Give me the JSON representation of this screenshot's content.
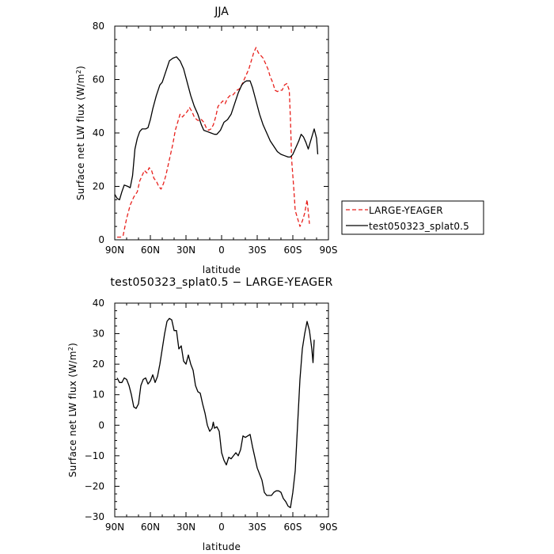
{
  "chart_data": [
    {
      "type": "line",
      "title": "JJA",
      "xlabel": "latitude",
      "ylabel": "Surface net LW flux (W/m²)",
      "ylabel_parts": [
        "Surface net LW flux (W/m",
        "2",
        ")"
      ],
      "xlim": [
        90,
        -90
      ],
      "ylim": [
        0,
        80
      ],
      "x_ticks": [
        90,
        60,
        30,
        0,
        -30,
        -60,
        -90
      ],
      "x_tick_labels": [
        "90N",
        "60N",
        "30N",
        "0",
        "30S",
        "60S",
        "90S"
      ],
      "y_ticks": [
        0,
        20,
        40,
        60,
        80
      ],
      "y_tick_labels": [
        "0",
        "20",
        "40",
        "60",
        "80"
      ],
      "legend": "right",
      "series": [
        {
          "name": "LARGE-YEAGER",
          "color": "#e8201c",
          "dash": true,
          "points": [
            [
              88,
              1
            ],
            [
              85,
              1
            ],
            [
              83,
              1.5
            ],
            [
              80,
              8
            ],
            [
              77,
              13
            ],
            [
              74,
              16
            ],
            [
              71,
              18
            ],
            [
              69,
              22
            ],
            [
              67,
              24
            ],
            [
              65,
              26
            ],
            [
              63,
              25
            ],
            [
              61,
              27
            ],
            [
              59,
              26
            ],
            [
              57,
              23
            ],
            [
              55,
              22
            ],
            [
              53,
              20
            ],
            [
              51,
              19
            ],
            [
              49,
              21
            ],
            [
              47,
              24
            ],
            [
              45,
              28
            ],
            [
              43,
              32
            ],
            [
              41,
              36
            ],
            [
              39,
              41
            ],
            [
              37,
              44
            ],
            [
              35,
              47
            ],
            [
              33,
              46
            ],
            [
              31,
              47
            ],
            [
              29,
              48
            ],
            [
              27,
              49.5
            ],
            [
              25,
              48
            ],
            [
              23,
              46
            ],
            [
              21,
              45
            ],
            [
              19,
              44.5
            ],
            [
              17,
              45
            ],
            [
              15,
              44
            ],
            [
              13,
              42
            ],
            [
              11,
              41
            ],
            [
              9,
              41.5
            ],
            [
              7,
              43
            ],
            [
              5,
              46
            ],
            [
              3,
              50
            ],
            [
              1,
              51
            ],
            [
              -1,
              52
            ],
            [
              -3,
              51
            ],
            [
              -5,
              53
            ],
            [
              -7,
              54
            ],
            [
              -9,
              54
            ],
            [
              -11,
              55
            ],
            [
              -13,
              56
            ],
            [
              -15,
              56.5
            ],
            [
              -17,
              58
            ],
            [
              -19,
              60
            ],
            [
              -21,
              62
            ],
            [
              -23,
              64
            ],
            [
              -25,
              67
            ],
            [
              -27,
              70
            ],
            [
              -29,
              72
            ],
            [
              -31,
              70
            ],
            [
              -33,
              69
            ],
            [
              -35,
              68
            ],
            [
              -37,
              66
            ],
            [
              -39,
              64
            ],
            [
              -41,
              61
            ],
            [
              -43,
              59
            ],
            [
              -45,
              56
            ],
            [
              -47,
              55.5
            ],
            [
              -49,
              56
            ],
            [
              -51,
              56
            ],
            [
              -53,
              58
            ],
            [
              -55,
              58.5
            ],
            [
              -57,
              56
            ],
            [
              -58,
              45
            ],
            [
              -59,
              30
            ],
            [
              -61,
              18
            ],
            [
              -62,
              11
            ],
            [
              -64,
              8
            ],
            [
              -66,
              5
            ],
            [
              -68,
              7
            ],
            [
              -70,
              10
            ],
            [
              -72,
              15
            ],
            [
              -74,
              6
            ]
          ]
        },
        {
          "name": "test050323_splat0.5",
          "color": "#000000",
          "dash": false,
          "points": [
            [
              90,
              17
            ],
            [
              88,
              15.5
            ],
            [
              86,
              15
            ],
            [
              84,
              18
            ],
            [
              82,
              20.5
            ],
            [
              79,
              20
            ],
            [
              77,
              19.5
            ],
            [
              75,
              24
            ],
            [
              73,
              34
            ],
            [
              71,
              38
            ],
            [
              69,
              40.5
            ],
            [
              67,
              41.5
            ],
            [
              64,
              41.5
            ],
            [
              62,
              42
            ],
            [
              60,
              45
            ],
            [
              58,
              49
            ],
            [
              55,
              54
            ],
            [
              52,
              58
            ],
            [
              50,
              59
            ],
            [
              47,
              63
            ],
            [
              44,
              67
            ],
            [
              41,
              68
            ],
            [
              38,
              68.5
            ],
            [
              35,
              67
            ],
            [
              32,
              64
            ],
            [
              29,
              59
            ],
            [
              26,
              54
            ],
            [
              23,
              50
            ],
            [
              20,
              47
            ],
            [
              17,
              43
            ],
            [
              15,
              41
            ],
            [
              12,
              40.5
            ],
            [
              9,
              40
            ],
            [
              6,
              39.5
            ],
            [
              4,
              39.5
            ],
            [
              1,
              41
            ],
            [
              -2,
              44
            ],
            [
              -5,
              45
            ],
            [
              -8,
              47
            ],
            [
              -11,
              51
            ],
            [
              -14,
              55
            ],
            [
              -17,
              58
            ],
            [
              -19,
              59
            ],
            [
              -21,
              59.5
            ],
            [
              -24,
              59.5
            ],
            [
              -26,
              57
            ],
            [
              -29,
              52
            ],
            [
              -32,
              47
            ],
            [
              -35,
              43
            ],
            [
              -38,
              40
            ],
            [
              -41,
              37
            ],
            [
              -44,
              35
            ],
            [
              -47,
              33
            ],
            [
              -50,
              32
            ],
            [
              -53,
              31.5
            ],
            [
              -56,
              31
            ],
            [
              -58,
              31
            ],
            [
              -60,
              32
            ],
            [
              -63,
              35
            ],
            [
              -65,
              37
            ],
            [
              -67,
              39.5
            ],
            [
              -69,
              38.5
            ],
            [
              -71,
              36.5
            ],
            [
              -73,
              34
            ],
            [
              -75,
              37
            ],
            [
              -77,
              40
            ],
            [
              -78,
              41.5
            ],
            [
              -80,
              38
            ],
            [
              -81,
              32
            ]
          ]
        }
      ]
    },
    {
      "type": "line",
      "title": "test050323_splat0.5 − LARGE-YEAGER",
      "xlabel": "latitude",
      "ylabel": "Surface net LW flux (W/m²)",
      "ylabel_parts": [
        "Surface net LW flux (W/m",
        "2",
        ")"
      ],
      "xlim": [
        90,
        -90
      ],
      "ylim": [
        -30,
        40
      ],
      "x_ticks": [
        90,
        60,
        30,
        0,
        -30,
        -60,
        -90
      ],
      "x_tick_labels": [
        "90N",
        "60N",
        "30N",
        "0",
        "30S",
        "60S",
        "90S"
      ],
      "y_ticks": [
        -30,
        -20,
        -10,
        0,
        10,
        20,
        30,
        40
      ],
      "y_tick_labels": [
        "−30",
        "−20",
        "−10",
        "0",
        "10",
        "20",
        "30",
        "40"
      ],
      "series": [
        {
          "name": "",
          "color": "#000000",
          "dash": false,
          "points": [
            [
              88,
              15.5
            ],
            [
              86,
              14
            ],
            [
              84,
              14
            ],
            [
              82,
              15.5
            ],
            [
              80,
              15
            ],
            [
              78,
              13
            ],
            [
              76,
              10
            ],
            [
              74,
              6
            ],
            [
              72,
              5.5
            ],
            [
              70,
              7
            ],
            [
              68,
              13
            ],
            [
              66,
              15
            ],
            [
              64,
              15.5
            ],
            [
              62,
              13.5
            ],
            [
              60,
              14.5
            ],
            [
              58,
              16.5
            ],
            [
              56,
              14
            ],
            [
              54,
              16
            ],
            [
              52,
              20
            ],
            [
              50,
              25
            ],
            [
              48,
              30
            ],
            [
              46,
              34
            ],
            [
              44,
              35
            ],
            [
              42,
              34.5
            ],
            [
              40,
              31
            ],
            [
              38,
              31
            ],
            [
              36,
              25
            ],
            [
              34,
              26
            ],
            [
              32,
              21
            ],
            [
              30,
              20
            ],
            [
              28,
              23
            ],
            [
              26,
              20
            ],
            [
              24,
              18
            ],
            [
              22,
              13
            ],
            [
              20,
              11
            ],
            [
              18,
              10.5
            ],
            [
              16,
              7
            ],
            [
              14,
              4
            ],
            [
              12,
              0
            ],
            [
              10,
              -2
            ],
            [
              8,
              -1
            ],
            [
              7,
              1
            ],
            [
              6,
              -1
            ],
            [
              4,
              -0.5
            ],
            [
              2,
              -2
            ],
            [
              0,
              -9
            ],
            [
              -2,
              -11.5
            ],
            [
              -4,
              -13
            ],
            [
              -6,
              -10.5
            ],
            [
              -8,
              -11
            ],
            [
              -10,
              -10
            ],
            [
              -12,
              -9
            ],
            [
              -14,
              -10
            ],
            [
              -16,
              -8
            ],
            [
              -18,
              -3.5
            ],
            [
              -20,
              -4
            ],
            [
              -22,
              -3.5
            ],
            [
              -24,
              -3
            ],
            [
              -26,
              -7
            ],
            [
              -28,
              -10.5
            ],
            [
              -30,
              -14
            ],
            [
              -32,
              -16
            ],
            [
              -34,
              -18
            ],
            [
              -36,
              -22
            ],
            [
              -38,
              -23
            ],
            [
              -40,
              -23
            ],
            [
              -42,
              -23
            ],
            [
              -44,
              -22
            ],
            [
              -46,
              -21.5
            ],
            [
              -48,
              -21.5
            ],
            [
              -50,
              -22
            ],
            [
              -52,
              -24
            ],
            [
              -54,
              -25
            ],
            [
              -56,
              -26.5
            ],
            [
              -58,
              -27
            ],
            [
              -60,
              -22
            ],
            [
              -62,
              -15
            ],
            [
              -64,
              0
            ],
            [
              -66,
              15
            ],
            [
              -68,
              25
            ],
            [
              -70,
              30
            ],
            [
              -72,
              34
            ],
            [
              -74,
              31
            ],
            [
              -76,
              25
            ],
            [
              -77,
              20.5
            ],
            [
              -78,
              28
            ]
          ]
        }
      ]
    }
  ]
}
